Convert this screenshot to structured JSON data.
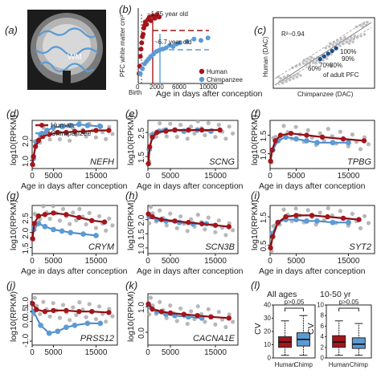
{
  "colors": {
    "human": "#a3161c",
    "chimp": "#5b9bd5",
    "grey": "#a6a6a6",
    "fit_human": "#8b0f14",
    "fit_chimp": "#4a86c8"
  },
  "panel_labels": [
    "(a)",
    "(b)",
    "(c)",
    "(d)",
    "(e)",
    "(f)",
    "(g)",
    "(h)",
    "(i)",
    "(j)",
    "(k)",
    "(l)"
  ],
  "panel_a": {
    "region_label": "WM"
  },
  "panel_b": {
    "ylabel": "PFC white matter cm³",
    "xlabel": "Age in days after conception",
    "xticks": [
      "0",
      "2000",
      "6000",
      "10000"
    ],
    "annotation_human": "~1.75 year old",
    "annotation_chimp": "~6.7 year old",
    "birth_label": "Birth",
    "legend": [
      "Human",
      "Chimpanzee"
    ]
  },
  "panel_c": {
    "ylabel": "Human (DAC)",
    "xlabel": "Chimpanzee (DAC)",
    "r2_label": "R²~0.94",
    "pct_labels": [
      "100%",
      "90%",
      "80%",
      "70%",
      "60%"
    ],
    "pct_caption": "of adult PFC"
  },
  "common": {
    "ylabel": "log10(RPKM)",
    "xlabel": "Age in days after conception",
    "xticks": [
      "0",
      "5000",
      "15000"
    ],
    "legend": [
      "Human",
      "Chimpanzee"
    ]
  },
  "panel_l": {
    "title_left": "All ages",
    "title_right": "10-50 yr",
    "pvalue": "p>0.05",
    "ylabel": "CV",
    "categories": [
      "Human",
      "Chimp"
    ],
    "yticks_left": [
      "0",
      "10",
      "20",
      "30",
      "40"
    ],
    "yticks_right": [
      "0",
      "2",
      "4",
      "6",
      "8",
      "10"
    ]
  },
  "chart_data": [
    {
      "panel": "b",
      "type": "scatter",
      "xlabel": "Age in days after conception",
      "ylabel": "PFC white matter cm³",
      "xlim": [
        0,
        12000
      ],
      "ylim": [
        0,
        60
      ],
      "series": [
        {
          "name": "Human",
          "x": [
            120,
            200,
            300,
            400,
            500,
            600,
            700,
            800,
            900,
            1000,
            1200,
            1400,
            1600,
            1800,
            2100,
            2400,
            2700,
            3000
          ],
          "y": [
            8,
            14,
            22,
            28,
            33,
            38,
            40,
            45,
            47,
            50,
            48,
            52,
            54,
            51,
            55,
            53,
            56,
            54
          ]
        },
        {
          "name": "Chimpanzee",
          "x": [
            300,
            600,
            900,
            1200,
            1500,
            1800,
            2200,
            2600,
            3000,
            3500,
            4000,
            4500,
            5000,
            5500,
            6000,
            7000,
            8000,
            9000,
            10000
          ],
          "y": [
            8,
            12,
            16,
            18,
            20,
            22,
            24,
            26,
            27,
            28,
            29,
            31,
            30,
            32,
            33,
            34,
            36,
            35,
            37
          ]
        }
      ]
    },
    {
      "panel": "c",
      "type": "scatter",
      "xlabel": "Chimpanzee (DAC)",
      "ylabel": "Human (DAC)",
      "series": [
        {
          "name": "genes",
          "x": [
            1,
            2,
            3,
            4,
            5,
            6,
            7,
            8,
            9,
            10
          ],
          "y": [
            1,
            2,
            3,
            4,
            5,
            6,
            7,
            8,
            9,
            10
          ]
        },
        {
          "name": "PFC milestones",
          "x": [
            5.2,
            5.6,
            6.0,
            6.4,
            6.8
          ],
          "y": [
            4.6,
            5.0,
            5.4,
            5.8,
            6.2
          ]
        }
      ]
    },
    {
      "panel": "d",
      "gene": "NEFH",
      "type": "scatter",
      "yticks": [
        "1.0",
        "2.0"
      ],
      "ylim": [
        0.6,
        3.0
      ],
      "human": [
        [
          100,
          0.8
        ],
        [
          300,
          1.2
        ],
        [
          800,
          1.7
        ],
        [
          1500,
          2.0
        ],
        [
          2500,
          2.2
        ],
        [
          4000,
          2.3
        ],
        [
          6000,
          2.4
        ],
        [
          8000,
          2.4
        ],
        [
          10000,
          2.45
        ],
        [
          12000,
          2.45
        ],
        [
          15000,
          2.5
        ],
        [
          18000,
          2.5
        ]
      ],
      "chimp": [
        [
          300,
          1.1
        ],
        [
          1000,
          1.9
        ],
        [
          2000,
          2.3
        ],
        [
          3500,
          2.5
        ],
        [
          5000,
          2.65
        ],
        [
          7000,
          2.7
        ],
        [
          9000,
          2.75
        ],
        [
          11000,
          2.8
        ],
        [
          13000,
          2.75
        ],
        [
          16000,
          2.7
        ]
      ]
    },
    {
      "panel": "e",
      "gene": "SCNG",
      "type": "scatter",
      "yticks": [
        "1.5",
        "2.5"
      ],
      "ylim": [
        1.0,
        3.0
      ],
      "human": [
        [
          100,
          1.2
        ],
        [
          400,
          1.9
        ],
        [
          1000,
          2.3
        ],
        [
          2000,
          2.5
        ],
        [
          4000,
          2.55
        ],
        [
          6000,
          2.6
        ],
        [
          9000,
          2.6
        ],
        [
          12000,
          2.6
        ],
        [
          16000,
          2.6
        ]
      ],
      "chimp": [
        [
          300,
          1.8
        ],
        [
          1200,
          2.4
        ],
        [
          2500,
          2.55
        ],
        [
          4000,
          2.6
        ],
        [
          6000,
          2.6
        ],
        [
          8000,
          2.55
        ],
        [
          11000,
          2.6
        ],
        [
          14000,
          2.55
        ]
      ]
    },
    {
      "panel": "f",
      "gene": "TPBG",
      "type": "scatter",
      "yticks": [
        "1.0",
        "1.5"
      ],
      "ylim": [
        0.6,
        1.9
      ],
      "human": [
        [
          100,
          0.8
        ],
        [
          400,
          1.1
        ],
        [
          1000,
          1.35
        ],
        [
          2000,
          1.5
        ],
        [
          4000,
          1.55
        ],
        [
          7000,
          1.5
        ],
        [
          10000,
          1.45
        ],
        [
          14000,
          1.4
        ],
        [
          18000,
          1.35
        ]
      ],
      "chimp": [
        [
          500,
          1.1
        ],
        [
          1500,
          1.35
        ],
        [
          3000,
          1.45
        ],
        [
          5000,
          1.4
        ],
        [
          7000,
          1.35
        ],
        [
          9000,
          1.3
        ],
        [
          12000,
          1.3
        ],
        [
          15000,
          1.3
        ]
      ]
    },
    {
      "panel": "g",
      "gene": "CRYM",
      "type": "scatter",
      "yticks": [
        "1.5",
        "2.0",
        "2.5"
      ],
      "ylim": [
        1.3,
        2.9
      ],
      "human": [
        [
          100,
          1.8
        ],
        [
          500,
          2.3
        ],
        [
          1500,
          2.55
        ],
        [
          3000,
          2.6
        ],
        [
          5000,
          2.65
        ],
        [
          8000,
          2.6
        ],
        [
          11000,
          2.5
        ],
        [
          14000,
          2.4
        ],
        [
          17000,
          2.35
        ]
      ],
      "chimp": [
        [
          400,
          2.1
        ],
        [
          1500,
          2.3
        ],
        [
          3000,
          2.2
        ],
        [
          5000,
          2.1
        ],
        [
          7000,
          2.05
        ],
        [
          9000,
          2.0
        ],
        [
          12000,
          1.95
        ],
        [
          15000,
          1.9
        ]
      ]
    },
    {
      "panel": "h",
      "gene": "SCN3B",
      "type": "scatter",
      "yticks": [
        "1.0",
        "1.5",
        "2.0"
      ],
      "ylim": [
        0.8,
        2.5
      ],
      "human": [
        [
          100,
          2.2
        ],
        [
          1000,
          2.1
        ],
        [
          3000,
          2.0
        ],
        [
          6000,
          1.95
        ],
        [
          9000,
          1.9
        ],
        [
          12000,
          1.85
        ],
        [
          15000,
          1.8
        ],
        [
          18000,
          1.75
        ]
      ],
      "chimp": [
        [
          300,
          2.1
        ],
        [
          2000,
          2.0
        ],
        [
          4000,
          1.95
        ],
        [
          7000,
          1.9
        ],
        [
          10000,
          1.85
        ],
        [
          13000,
          1.85
        ]
      ]
    },
    {
      "panel": "i",
      "gene": "SYT2",
      "type": "scatter",
      "yticks": [
        "0.5",
        "1.5"
      ],
      "ylim": [
        0.2,
        1.9
      ],
      "human": [
        [
          100,
          0.4
        ],
        [
          500,
          0.8
        ],
        [
          1500,
          1.3
        ],
        [
          3000,
          1.5
        ],
        [
          5000,
          1.55
        ],
        [
          8000,
          1.55
        ],
        [
          11000,
          1.5
        ],
        [
          14000,
          1.45
        ],
        [
          17000,
          1.4
        ]
      ],
      "chimp": [
        [
          400,
          0.9
        ],
        [
          1500,
          1.3
        ],
        [
          3000,
          1.4
        ],
        [
          5000,
          1.4
        ],
        [
          7000,
          1.35
        ],
        [
          9000,
          1.35
        ],
        [
          12000,
          1.3
        ],
        [
          15000,
          1.3
        ]
      ]
    },
    {
      "panel": "j",
      "gene": "PRSS12",
      "type": "scatter",
      "yticks": [
        "-1.0",
        "0.0",
        "0.5",
        "1.0"
      ],
      "ylim": [
        -1.2,
        1.4
      ],
      "human": [
        [
          100,
          0.9
        ],
        [
          1000,
          0.6
        ],
        [
          3000,
          0.5
        ],
        [
          5000,
          0.55
        ],
        [
          8000,
          0.55
        ],
        [
          11000,
          0.5
        ],
        [
          14000,
          0.5
        ],
        [
          18000,
          0.45
        ]
      ],
      "chimp": [
        [
          300,
          0.5
        ],
        [
          2000,
          -0.2
        ],
        [
          4000,
          -0.6
        ],
        [
          6000,
          -0.5
        ],
        [
          8000,
          -0.3
        ],
        [
          10000,
          -0.2
        ],
        [
          13000,
          -0.1
        ],
        [
          16000,
          -0.1
        ]
      ]
    },
    {
      "panel": "k",
      "gene": "CACNA1E",
      "type": "scatter",
      "yticks": [
        "0.0",
        "1.0"
      ],
      "ylim": [
        -0.5,
        1.5
      ],
      "human": [
        [
          100,
          1.1
        ],
        [
          1000,
          0.9
        ],
        [
          3000,
          0.8
        ],
        [
          5000,
          0.75
        ],
        [
          8000,
          0.7
        ],
        [
          11000,
          0.65
        ],
        [
          14000,
          0.6
        ],
        [
          18000,
          0.55
        ]
      ],
      "chimp": [
        [
          300,
          1.0
        ],
        [
          2000,
          0.8
        ],
        [
          4000,
          0.7
        ],
        [
          6000,
          0.65
        ],
        [
          9000,
          0.6
        ],
        [
          12000,
          0.55
        ]
      ]
    },
    {
      "panel": "l-left",
      "type": "box",
      "title": "All ages",
      "ylabel": "CV",
      "ylim": [
        0,
        40
      ],
      "categories": [
        "Human",
        "Chimp"
      ],
      "boxes": [
        {
          "min": 2,
          "q1": 8,
          "median": 12,
          "q3": 16,
          "max": 28
        },
        {
          "min": 2,
          "q1": 9,
          "median": 14,
          "q3": 19,
          "max": 32
        }
      ]
    },
    {
      "panel": "l-right",
      "type": "box",
      "title": "10-50 yr",
      "ylabel": "CV",
      "ylim": [
        0,
        10
      ],
      "categories": [
        "Human",
        "Chimp"
      ],
      "boxes": [
        {
          "min": 0.5,
          "q1": 2.0,
          "median": 3.0,
          "q3": 4.2,
          "max": 7.0
        },
        {
          "min": 0.5,
          "q1": 1.8,
          "median": 2.6,
          "q3": 3.8,
          "max": 6.5
        }
      ]
    }
  ]
}
